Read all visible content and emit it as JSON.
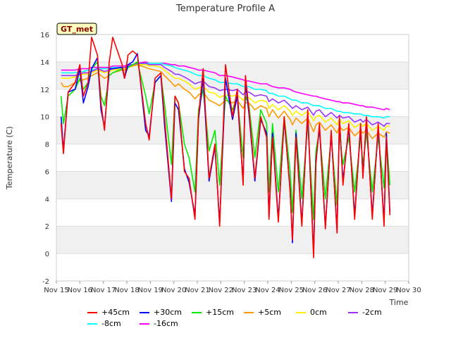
{
  "chart_data": {
    "type": "line",
    "title": "Temperature Profile A",
    "xlabel": "Time",
    "ylabel": "Temperature (C)",
    "annotation": "GT_met",
    "ylim": [
      -2,
      16
    ],
    "yticks": [
      -2,
      0,
      2,
      4,
      6,
      8,
      10,
      12,
      14,
      16
    ],
    "xlim": [
      15,
      30
    ],
    "xticks": [
      15,
      16,
      17,
      18,
      19,
      20,
      21,
      22,
      23,
      24,
      25,
      26,
      27,
      28,
      29,
      30
    ],
    "xtick_labels": [
      "Nov 15",
      "Nov 16",
      "Nov 17",
      "Nov 18",
      "Nov 19",
      "Nov 20",
      "Nov 21",
      "Nov 22",
      "Nov 23",
      "Nov 24",
      "Nov 25",
      "Nov 26",
      "Nov 27",
      "Nov 28",
      "Nov 29",
      "Nov 30"
    ],
    "background_bands": true,
    "legend_position": "bottom",
    "x": [
      15.2,
      15.3,
      15.5,
      15.8,
      16.0,
      16.15,
      16.35,
      16.5,
      16.75,
      16.9,
      17.05,
      17.25,
      17.4,
      17.8,
      17.9,
      18.05,
      18.25,
      18.45,
      18.8,
      18.95,
      19.2,
      19.45,
      19.6,
      19.9,
      20.05,
      20.2,
      20.45,
      20.65,
      20.9,
      21.05,
      21.25,
      21.5,
      21.75,
      21.95,
      22.2,
      22.5,
      22.7,
      22.95,
      23.05,
      23.2,
      23.45,
      23.7,
      23.95,
      24.05,
      24.2,
      24.45,
      24.7,
      24.95,
      25.05,
      25.2,
      25.45,
      25.7,
      25.95,
      26.05,
      26.2,
      26.45,
      26.7,
      26.95,
      27.05,
      27.2,
      27.45,
      27.7,
      27.95,
      28.05,
      28.2,
      28.45,
      28.7,
      28.95,
      29.05,
      29.2
    ],
    "series": [
      {
        "name": "+45cm",
        "color": "#ff0000",
        "values": [
          9.5,
          7.3,
          11.8,
          12.5,
          13.8,
          11.5,
          12.5,
          15.8,
          14.5,
          11.0,
          9.0,
          14.0,
          15.8,
          13.8,
          12.8,
          14.5,
          14.8,
          14.5,
          9.5,
          8.3,
          12.8,
          13.2,
          10.0,
          4.0,
          11.5,
          11.0,
          6.0,
          5.5,
          2.5,
          10.0,
          13.5,
          5.5,
          8.0,
          2.0,
          13.8,
          10.0,
          12.0,
          5.0,
          13.0,
          10.5,
          5.5,
          10.0,
          8.5,
          2.5,
          8.5,
          2.3,
          10.0,
          4.5,
          1.0,
          8.5,
          2.0,
          10.5,
          -0.3,
          6.5,
          9.5,
          1.8,
          9.0,
          1.5,
          10.0,
          5.0,
          9.5,
          2.5,
          9.5,
          5.5,
          10.0,
          2.5,
          9.5,
          2.0,
          8.5,
          2.8
        ]
      },
      {
        "name": "+30cm",
        "color": "#0000ff",
        "values": [
          10.0,
          7.5,
          11.8,
          12.0,
          13.5,
          11.0,
          12.2,
          13.5,
          14.3,
          10.5,
          9.2,
          13.5,
          13.5,
          13.6,
          12.8,
          13.8,
          14.0,
          14.6,
          9.0,
          8.6,
          12.5,
          13.0,
          9.5,
          3.8,
          11.0,
          10.5,
          6.2,
          5.2,
          2.8,
          9.8,
          12.8,
          5.3,
          7.8,
          2.2,
          12.8,
          9.8,
          11.5,
          5.2,
          12.5,
          10.2,
          5.3,
          9.8,
          8.8,
          2.7,
          8.8,
          2.5,
          9.8,
          4.7,
          0.8,
          8.8,
          2.2,
          10.2,
          0.0,
          6.8,
          9.2,
          2.0,
          8.8,
          1.7,
          9.7,
          5.3,
          9.2,
          2.8,
          9.2,
          5.7,
          9.7,
          2.8,
          9.2,
          2.3,
          8.8,
          3.0
        ]
      },
      {
        "name": "+15cm",
        "color": "#00ee00",
        "values": [
          11.5,
          9.5,
          11.5,
          12.0,
          12.8,
          12.0,
          12.5,
          13.5,
          14.0,
          11.5,
          10.8,
          13.0,
          13.2,
          13.5,
          13.0,
          13.6,
          13.8,
          14.0,
          11.5,
          10.2,
          12.5,
          13.0,
          11.0,
          6.5,
          11.5,
          11.0,
          8.0,
          7.0,
          4.5,
          10.5,
          12.0,
          7.5,
          9.0,
          5.0,
          11.5,
          10.5,
          11.5,
          7.0,
          11.5,
          10.8,
          7.0,
          10.5,
          9.5,
          4.5,
          9.5,
          4.5,
          10.0,
          6.0,
          3.0,
          9.0,
          4.0,
          9.5,
          2.5,
          7.5,
          9.0,
          4.0,
          8.5,
          3.5,
          8.8,
          6.5,
          8.5,
          4.5,
          8.5,
          6.5,
          8.8,
          4.5,
          8.5,
          4.8,
          8.5,
          5.0
        ]
      },
      {
        "name": "+5cm",
        "color": "#ff9900",
        "values": [
          12.5,
          12.2,
          12.2,
          12.5,
          12.6,
          12.7,
          12.8,
          13.0,
          13.2,
          13.0,
          12.8,
          13.0,
          13.2,
          13.4,
          13.4,
          13.6,
          13.7,
          13.8,
          13.6,
          13.5,
          13.4,
          13.3,
          13.0,
          12.5,
          12.2,
          12.4,
          12.0,
          11.8,
          11.3,
          11.6,
          11.8,
          11.2,
          11.0,
          10.8,
          11.2,
          11.0,
          11.2,
          10.6,
          11.0,
          11.0,
          10.5,
          10.8,
          10.6,
          10.0,
          10.5,
          9.9,
          10.4,
          9.8,
          9.4,
          9.9,
          9.5,
          9.9,
          8.9,
          9.4,
          9.6,
          9.0,
          9.4,
          8.8,
          9.3,
          9.0,
          9.2,
          8.6,
          9.0,
          8.8,
          9.0,
          8.4,
          8.8,
          8.5,
          8.9,
          8.8
        ]
      },
      {
        "name": "0cm",
        "color": "#ffee00",
        "values": [
          12.8,
          12.8,
          12.8,
          12.9,
          13.0,
          13.1,
          13.1,
          13.2,
          13.4,
          13.3,
          13.2,
          13.3,
          13.4,
          13.5,
          13.5,
          13.6,
          13.7,
          13.8,
          13.8,
          13.7,
          13.7,
          13.6,
          13.4,
          13.0,
          12.8,
          12.8,
          12.6,
          12.4,
          12.0,
          12.1,
          12.2,
          11.8,
          11.7,
          11.4,
          11.6,
          11.5,
          11.6,
          11.2,
          11.4,
          11.4,
          11.0,
          11.2,
          11.1,
          10.6,
          10.9,
          10.5,
          10.8,
          10.4,
          10.1,
          10.4,
          10.1,
          10.4,
          9.7,
          10.0,
          10.1,
          9.6,
          9.9,
          9.4,
          9.8,
          9.5,
          9.7,
          9.2,
          9.5,
          9.3,
          9.5,
          9.0,
          9.3,
          9.0,
          9.3,
          9.3
        ]
      },
      {
        "name": "-2cm",
        "color": "#9933ff",
        "values": [
          13.0,
          13.0,
          13.0,
          13.0,
          13.1,
          13.2,
          13.2,
          13.3,
          13.5,
          13.4,
          13.3,
          13.4,
          13.5,
          13.6,
          13.6,
          13.7,
          13.8,
          13.9,
          13.9,
          13.8,
          13.8,
          13.8,
          13.6,
          13.3,
          13.1,
          13.1,
          12.9,
          12.7,
          12.4,
          12.5,
          12.6,
          12.2,
          12.1,
          11.9,
          12.0,
          11.9,
          12.0,
          11.6,
          11.8,
          11.8,
          11.5,
          11.6,
          11.5,
          11.1,
          11.3,
          11.0,
          11.2,
          10.8,
          10.6,
          10.8,
          10.5,
          10.7,
          10.1,
          10.4,
          10.5,
          10.0,
          10.3,
          9.9,
          10.1,
          9.9,
          10.0,
          9.6,
          9.8,
          9.6,
          9.8,
          9.4,
          9.6,
          9.3,
          9.5,
          9.5
        ]
      },
      {
        "name": "-8cm",
        "color": "#00ffff",
        "values": [
          13.2,
          13.2,
          13.2,
          13.2,
          13.3,
          13.3,
          13.4,
          13.4,
          13.5,
          13.5,
          13.5,
          13.5,
          13.6,
          13.6,
          13.6,
          13.7,
          13.8,
          13.8,
          13.9,
          13.9,
          13.9,
          13.9,
          13.8,
          13.7,
          13.6,
          13.5,
          13.4,
          13.3,
          13.1,
          13.0,
          13.0,
          12.8,
          12.7,
          12.5,
          12.5,
          12.4,
          12.4,
          12.2,
          12.2,
          12.2,
          12.0,
          12.0,
          11.9,
          11.7,
          11.7,
          11.5,
          11.5,
          11.3,
          11.2,
          11.2,
          11.0,
          11.0,
          10.8,
          10.8,
          10.8,
          10.6,
          10.6,
          10.4,
          10.4,
          10.3,
          10.3,
          10.2,
          10.2,
          10.1,
          10.1,
          10.0,
          10.0,
          9.9,
          10.0,
          10.0
        ]
      },
      {
        "name": "-16cm",
        "color": "#ff00ff",
        "values": [
          13.4,
          13.4,
          13.4,
          13.4,
          13.5,
          13.5,
          13.5,
          13.6,
          13.6,
          13.6,
          13.6,
          13.6,
          13.7,
          13.7,
          13.7,
          13.8,
          13.8,
          13.9,
          14.0,
          13.9,
          13.9,
          13.9,
          13.9,
          13.8,
          13.8,
          13.7,
          13.7,
          13.6,
          13.5,
          13.4,
          13.4,
          13.3,
          13.2,
          13.0,
          13.0,
          12.9,
          12.8,
          12.7,
          12.6,
          12.6,
          12.5,
          12.4,
          12.4,
          12.3,
          12.2,
          12.1,
          12.1,
          12.0,
          11.9,
          11.8,
          11.7,
          11.6,
          11.5,
          11.5,
          11.4,
          11.3,
          11.2,
          11.1,
          11.1,
          11.0,
          11.0,
          10.9,
          10.8,
          10.8,
          10.7,
          10.7,
          10.6,
          10.5,
          10.6,
          10.5
        ]
      }
    ]
  }
}
